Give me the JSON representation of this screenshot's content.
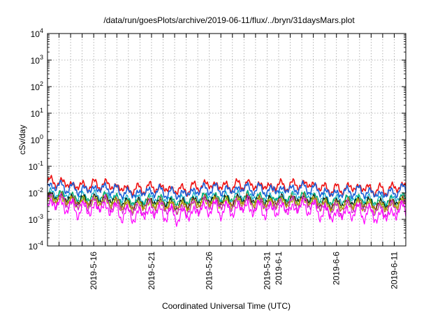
{
  "chart_data": {
    "type": "line",
    "title": "/data/run/goesPlots/archive/2019-06-11/flux/../bryn/31daysMars.plot",
    "xlabel": "Coordinated Universal Time (UTC)",
    "ylabel": "cSv/day",
    "yscale": "log",
    "ylim": [
      0.0001,
      10000
    ],
    "xlim": [
      "2019-05-12",
      "2019-06-12"
    ],
    "y_ticks": [
      {
        "value": 0.0001,
        "base": "10",
        "exp": "-4"
      },
      {
        "value": 0.001,
        "base": "10",
        "exp": "-3"
      },
      {
        "value": 0.01,
        "base": "10",
        "exp": "-2"
      },
      {
        "value": 0.1,
        "base": "10",
        "exp": "-1"
      },
      {
        "value": 1,
        "base": "10",
        "exp": "0"
      },
      {
        "value": 10,
        "base": "10",
        "exp": "1"
      },
      {
        "value": 100,
        "base": "10",
        "exp": "2"
      },
      {
        "value": 1000,
        "base": "10",
        "exp": "3"
      },
      {
        "value": 10000,
        "base": "10",
        "exp": "4"
      }
    ],
    "x_tick_labels": [
      "2019-5-16",
      "2019-5-21",
      "2019-5-26",
      "2019-5-31",
      "2019-6-1",
      "2019-6-6",
      "2019-6-11"
    ],
    "x_tick_dates": [
      "2019-05-16",
      "2019-05-21",
      "2019-05-26",
      "2019-05-31",
      "2019-06-01",
      "2019-06-06",
      "2019-06-11"
    ],
    "grid": true,
    "legend": "none",
    "series": [
      {
        "color": "#ee1111",
        "base": 0.0175
      },
      {
        "color": "#1a5fd6",
        "base": 0.0125
      },
      {
        "color": "#00a8c8",
        "base": 0.0068
      },
      {
        "color": "#00b060",
        "base": 0.0058
      },
      {
        "color": "#111111",
        "base": 0.005
      },
      {
        "color": "#b05a28",
        "base": 0.0044
      },
      {
        "color": "#b0b000",
        "base": 0.004
      },
      {
        "color": "#d020d0",
        "base": 0.0032
      },
      {
        "color": "#ff00ff",
        "base": 0.0022
      }
    ]
  }
}
